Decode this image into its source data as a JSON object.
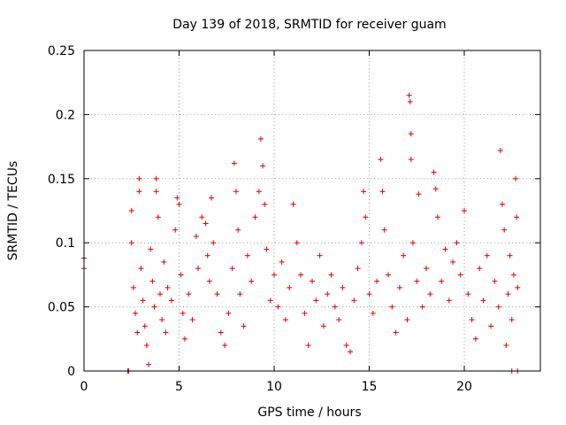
{
  "chart_data": {
    "type": "scatter",
    "title": "Day 139 of 2018, SRMTID for receiver guam",
    "xlabel": "GPS time / hours",
    "ylabel": "SRMTID / TECUs",
    "xlim": [
      0,
      24
    ],
    "ylim": [
      0,
      0.25
    ],
    "x_ticks": [
      0,
      5,
      10,
      15,
      20
    ],
    "x_tick_labels": [
      "0",
      "5",
      "10",
      "15",
      "20"
    ],
    "y_ticks": [
      0,
      0.05,
      0.1,
      0.15,
      0.2,
      0.25
    ],
    "y_tick_labels": [
      "0",
      "0.05",
      "0.1",
      "0.15",
      "0.2",
      "0.25"
    ],
    "grid": true,
    "marker": "plus",
    "color": "#e00000",
    "series": [
      {
        "values": [
          [
            0.0,
            0.088
          ],
          [
            0.0,
            0.08
          ],
          [
            2.3,
            0.0
          ],
          [
            2.35,
            0.0
          ],
          [
            22.5,
            0.0
          ],
          [
            22.8,
            0.0
          ],
          [
            2.5,
            0.125
          ],
          [
            2.5,
            0.1
          ],
          [
            2.6,
            0.065
          ],
          [
            2.7,
            0.045
          ],
          [
            2.8,
            0.03
          ],
          [
            2.9,
            0.15
          ],
          [
            2.9,
            0.14
          ],
          [
            3.0,
            0.08
          ],
          [
            3.1,
            0.055
          ],
          [
            3.2,
            0.035
          ],
          [
            3.3,
            0.02
          ],
          [
            3.4,
            0.005
          ],
          [
            3.5,
            0.095
          ],
          [
            3.6,
            0.07
          ],
          [
            3.7,
            0.05
          ],
          [
            3.8,
            0.15
          ],
          [
            3.8,
            0.14
          ],
          [
            3.9,
            0.12
          ],
          [
            4.0,
            0.06
          ],
          [
            4.1,
            0.04
          ],
          [
            4.2,
            0.085
          ],
          [
            4.3,
            0.03
          ],
          [
            4.4,
            0.065
          ],
          [
            4.6,
            0.055
          ],
          [
            4.8,
            0.11
          ],
          [
            4.9,
            0.135
          ],
          [
            5.0,
            0.13
          ],
          [
            5.1,
            0.075
          ],
          [
            5.2,
            0.045
          ],
          [
            5.3,
            0.025
          ],
          [
            5.5,
            0.06
          ],
          [
            5.7,
            0.04
          ],
          [
            5.9,
            0.105
          ],
          [
            6.0,
            0.08
          ],
          [
            6.2,
            0.12
          ],
          [
            6.4,
            0.115
          ],
          [
            6.5,
            0.09
          ],
          [
            6.6,
            0.07
          ],
          [
            6.7,
            0.135
          ],
          [
            6.8,
            0.1
          ],
          [
            7.0,
            0.06
          ],
          [
            7.2,
            0.03
          ],
          [
            7.4,
            0.02
          ],
          [
            7.6,
            0.045
          ],
          [
            7.8,
            0.08
          ],
          [
            7.9,
            0.162
          ],
          [
            8.0,
            0.14
          ],
          [
            8.1,
            0.11
          ],
          [
            8.2,
            0.06
          ],
          [
            8.4,
            0.035
          ],
          [
            8.6,
            0.09
          ],
          [
            8.8,
            0.07
          ],
          [
            9.0,
            0.12
          ],
          [
            9.2,
            0.14
          ],
          [
            9.3,
            0.181
          ],
          [
            9.4,
            0.16
          ],
          [
            9.5,
            0.13
          ],
          [
            9.6,
            0.095
          ],
          [
            9.8,
            0.055
          ],
          [
            10.0,
            0.075
          ],
          [
            10.2,
            0.05
          ],
          [
            10.4,
            0.085
          ],
          [
            10.6,
            0.04
          ],
          [
            10.8,
            0.065
          ],
          [
            11.0,
            0.13
          ],
          [
            11.2,
            0.1
          ],
          [
            11.4,
            0.075
          ],
          [
            11.6,
            0.045
          ],
          [
            11.8,
            0.02
          ],
          [
            12.0,
            0.07
          ],
          [
            12.2,
            0.055
          ],
          [
            12.4,
            0.09
          ],
          [
            12.6,
            0.035
          ],
          [
            12.8,
            0.06
          ],
          [
            13.0,
            0.075
          ],
          [
            13.2,
            0.05
          ],
          [
            13.4,
            0.04
          ],
          [
            13.6,
            0.065
          ],
          [
            13.8,
            0.02
          ],
          [
            14.0,
            0.015
          ],
          [
            14.2,
            0.055
          ],
          [
            14.4,
            0.08
          ],
          [
            14.6,
            0.1
          ],
          [
            14.7,
            0.14
          ],
          [
            14.8,
            0.12
          ],
          [
            15.0,
            0.06
          ],
          [
            15.2,
            0.045
          ],
          [
            15.4,
            0.07
          ],
          [
            15.6,
            0.165
          ],
          [
            15.7,
            0.14
          ],
          [
            15.8,
            0.11
          ],
          [
            16.0,
            0.075
          ],
          [
            16.2,
            0.05
          ],
          [
            16.4,
            0.03
          ],
          [
            16.6,
            0.065
          ],
          [
            16.8,
            0.09
          ],
          [
            17.0,
            0.04
          ],
          [
            17.1,
            0.215
          ],
          [
            17.15,
            0.21
          ],
          [
            17.2,
            0.185
          ],
          [
            17.2,
            0.165
          ],
          [
            17.3,
            0.1
          ],
          [
            17.5,
            0.07
          ],
          [
            17.6,
            0.138
          ],
          [
            17.8,
            0.05
          ],
          [
            18.0,
            0.08
          ],
          [
            18.2,
            0.06
          ],
          [
            18.4,
            0.155
          ],
          [
            18.5,
            0.142
          ],
          [
            18.6,
            0.12
          ],
          [
            18.8,
            0.07
          ],
          [
            19.0,
            0.095
          ],
          [
            19.2,
            0.055
          ],
          [
            19.4,
            0.085
          ],
          [
            19.6,
            0.1
          ],
          [
            19.8,
            0.075
          ],
          [
            20.0,
            0.125
          ],
          [
            20.2,
            0.06
          ],
          [
            20.4,
            0.04
          ],
          [
            20.6,
            0.025
          ],
          [
            20.8,
            0.08
          ],
          [
            21.0,
            0.055
          ],
          [
            21.2,
            0.09
          ],
          [
            21.4,
            0.035
          ],
          [
            21.6,
            0.07
          ],
          [
            21.8,
            0.05
          ],
          [
            21.9,
            0.172
          ],
          [
            22.0,
            0.13
          ],
          [
            22.1,
            0.11
          ],
          [
            22.2,
            0.02
          ],
          [
            22.3,
            0.06
          ],
          [
            22.4,
            0.09
          ],
          [
            22.5,
            0.04
          ],
          [
            22.6,
            0.075
          ],
          [
            22.7,
            0.15
          ],
          [
            22.75,
            0.12
          ],
          [
            22.8,
            0.065
          ]
        ]
      }
    ]
  }
}
